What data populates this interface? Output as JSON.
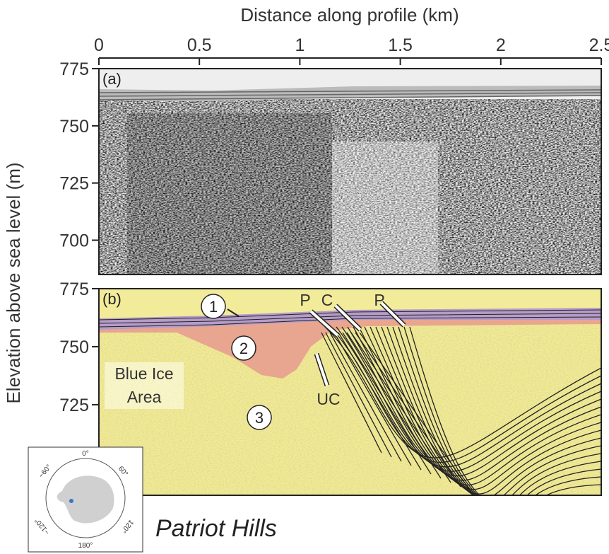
{
  "chart_data": [
    {
      "type": "radargram",
      "title": "(a)",
      "xlabel": "Distance along profile (km)",
      "ylabel": "Elevation above sea level (m)",
      "xlim": [
        0,
        2.5
      ],
      "xticks": [
        0,
        0.5,
        1,
        1.5,
        2,
        2.5
      ],
      "ylim": [
        685,
        775
      ],
      "yticks": [
        700,
        725,
        750,
        775
      ]
    },
    {
      "type": "interpretation",
      "title": "(b)",
      "xlim": [
        0,
        2.5
      ],
      "ylim": [
        686,
        775
      ],
      "yticks": [
        725,
        750,
        775
      ],
      "annotations": [
        "1",
        "2",
        "3",
        "P",
        "C",
        "P",
        "UC",
        "Blue Ice Area"
      ]
    }
  ],
  "inset": {
    "labels": [
      "0°",
      "60°",
      "120°",
      "180°",
      "−120°",
      "−60°"
    ],
    "caption": "Patriot Hills"
  }
}
